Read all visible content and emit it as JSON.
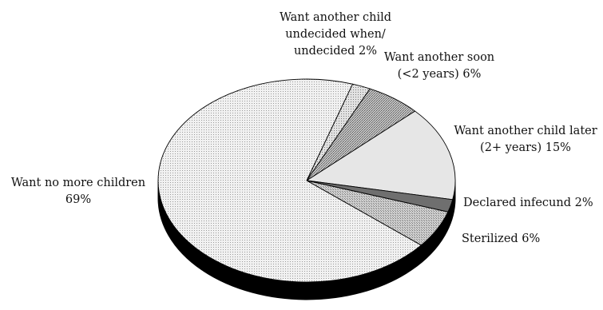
{
  "chart_data": {
    "type": "pie",
    "style": "3d",
    "title": "",
    "slices": [
      {
        "label_lines": [
          "Want another child",
          "undecided when/",
          "undecided 2%"
        ],
        "value": 2,
        "pattern": "light-dots"
      },
      {
        "label_lines": [
          "Want another soon",
          "(<2 years) 6%"
        ],
        "value": 6,
        "pattern": "dark-stipple"
      },
      {
        "label_lines": [
          "Want another child later",
          "(2+ years) 15%"
        ],
        "value": 15,
        "pattern": "light-solid"
      },
      {
        "label_lines": [
          "Declared infecund 2%"
        ],
        "value": 2,
        "pattern": "dark-solid"
      },
      {
        "label_lines": [
          "Sterilized 6%"
        ],
        "value": 6,
        "pattern": "medium-stipple"
      },
      {
        "label_lines": [
          "Want no more children",
          "69%"
        ],
        "value": 69,
        "pattern": "fine-dots"
      }
    ],
    "colors": {
      "outline": "#000000",
      "side": "#000000",
      "light_solid": "#e6e6e6",
      "dark_solid": "#6f6f6f"
    }
  }
}
